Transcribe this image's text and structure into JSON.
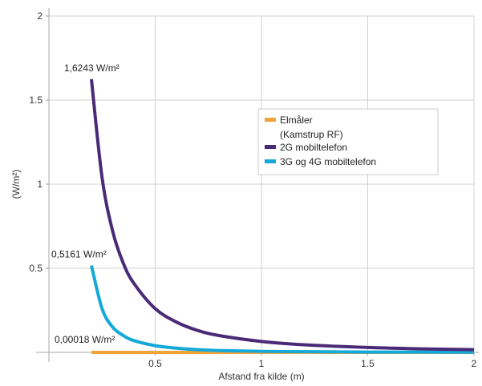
{
  "chart_data": {
    "type": "line",
    "xlabel": "Afstand fra kilde (m)",
    "ylabel": "(W/m²)",
    "xlim": [
      0,
      2
    ],
    "ylim": [
      0,
      2
    ],
    "x_ticks": [
      {
        "value": 0.5,
        "label": "0.5"
      },
      {
        "value": 1,
        "label": "1"
      },
      {
        "value": 1.5,
        "label": "1.5"
      },
      {
        "value": 2,
        "label": "2"
      }
    ],
    "y_ticks": [
      {
        "value": 0.5,
        "label": "0.5"
      },
      {
        "value": 1,
        "label": "1"
      },
      {
        "value": 1.5,
        "label": "1.5"
      },
      {
        "value": 2,
        "label": "2"
      }
    ],
    "grid": true,
    "legend_position": "right",
    "series": [
      {
        "name": "Elmåler",
        "name_line2": "(Kamstrup RF)",
        "color": "#f2a33a",
        "x": [
          0.2,
          0.3,
          0.4,
          0.5,
          0.75,
          1.0,
          1.25,
          1.5,
          1.75,
          2.0
        ],
        "y": [
          0.00018,
          8e-05,
          4.5e-05,
          3e-05,
          1.3e-05,
          7e-06,
          5e-06,
          3e-06,
          2e-06,
          2e-06
        ]
      },
      {
        "name": "2G mobiltelefon",
        "color": "#4a2a77",
        "x": [
          0.2,
          0.25,
          0.3,
          0.35,
          0.4,
          0.5,
          0.6,
          0.7,
          0.8,
          1.0,
          1.2,
          1.5,
          1.75,
          2.0
        ],
        "y": [
          1.6243,
          1.04,
          0.72,
          0.53,
          0.41,
          0.26,
          0.18,
          0.13,
          0.1,
          0.065,
          0.045,
          0.029,
          0.021,
          0.016
        ]
      },
      {
        "name": "3G og 4G mobiltelefon",
        "color": "#14a9d8",
        "x": [
          0.2,
          0.25,
          0.3,
          0.35,
          0.4,
          0.5,
          0.6,
          0.7,
          0.8,
          1.0,
          1.2,
          1.5,
          1.75,
          2.0
        ],
        "y": [
          0.5161,
          0.26,
          0.15,
          0.1,
          0.07,
          0.04,
          0.025,
          0.016,
          0.011,
          0.006,
          0.004,
          0.002,
          0.0015,
          0.001
        ]
      }
    ],
    "annotations": [
      {
        "text": "1,6243 W/m²",
        "x": 0.2,
        "y": 1.6243
      },
      {
        "text": "0,5161  W/m²",
        "x": 0.2,
        "y": 0.5161
      },
      {
        "text": "0,00018 W/m²",
        "x": 0.2,
        "y": 0.00018
      }
    ]
  }
}
